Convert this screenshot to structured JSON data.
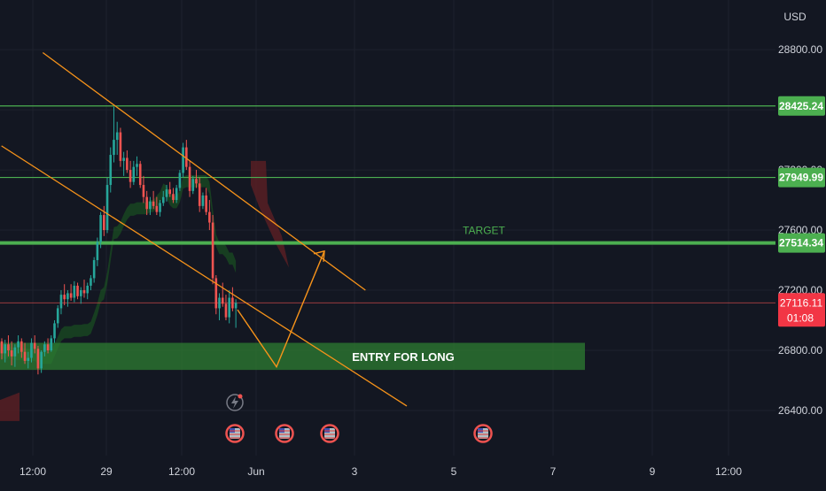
{
  "colors": {
    "background": "#131722",
    "grid": "#1e222d",
    "axis_text": "#d1d4dc",
    "candle_up": "#26a69a",
    "candle_down": "#ef5350",
    "channel": "#f7931a",
    "level_line": "#4caf50",
    "level_label_bg": "#4caf50",
    "price_label_bg": "#f23645",
    "cloud_green": "#1b5e20",
    "cloud_red": "#5c1f24",
    "entry_zone": "#2e7d32"
  },
  "chart_data": {
    "type": "candlestick",
    "currency": "USD",
    "y_ticks": [
      "28800.00",
      "26800.00",
      "26400.00"
    ],
    "y_ticks_partially_hidden": [
      "27600.00",
      "27200.00",
      "27200.00"
    ],
    "x_ticks": [
      "12:00",
      "29",
      "12:00",
      "Jun",
      "3",
      "5",
      "7",
      "9",
      "12:00"
    ],
    "ylim": [
      26100,
      29130
    ],
    "horizontal_levels": [
      {
        "price": 28425.24,
        "label": "28425.24"
      },
      {
        "price": 27949.99,
        "label": "27949.99"
      },
      {
        "price": 27514.34,
        "label": "27514.34",
        "annotation": "TARGET"
      }
    ],
    "current_price": {
      "price": 27116.11,
      "label": "27116.11",
      "countdown": "01:08"
    },
    "entry_zone": {
      "low": 26670,
      "high": 26850,
      "label": "ENTRY FOR LONG"
    },
    "channel_upper": [
      [
        "May 28 14:00",
        28780
      ],
      [
        "May 31 20:00",
        27200
      ]
    ],
    "channel_lower": [
      [
        "May 28 04:00",
        28160
      ],
      [
        "Jun 1 06:00",
        26430
      ]
    ],
    "projection_path": [
      [
        27070,
        27160
      ],
      [
        26690,
        26690
      ],
      [
        27460,
        27460
      ]
    ],
    "event_icons": [
      "flag-us-icon",
      "flag-us-icon",
      "flag-us-icon",
      "flag-us-icon"
    ],
    "alert_icon": "lightning-icon",
    "candles": [
      [
        26860,
        26880,
        26740,
        26780
      ],
      [
        26780,
        26870,
        26720,
        26840
      ],
      [
        26840,
        26900,
        26760,
        26800
      ],
      [
        26800,
        26860,
        26700,
        26760
      ],
      [
        26760,
        26840,
        26690,
        26820
      ],
      [
        26820,
        26900,
        26780,
        26860
      ],
      [
        26860,
        26880,
        26750,
        26790
      ],
      [
        26790,
        26850,
        26710,
        26730
      ],
      [
        26730,
        26790,
        26680,
        26750
      ],
      [
        26750,
        26880,
        26720,
        26850
      ],
      [
        26850,
        26900,
        26780,
        26810
      ],
      [
        26810,
        26830,
        26640,
        26680
      ],
      [
        26680,
        26800,
        26650,
        26790
      ],
      [
        26790,
        26860,
        26760,
        26840
      ],
      [
        26840,
        26880,
        26780,
        26800
      ],
      [
        26800,
        26900,
        26790,
        26880
      ],
      [
        26880,
        27000,
        26850,
        26980
      ],
      [
        26980,
        27100,
        26950,
        27080
      ],
      [
        27080,
        27200,
        27040,
        27170
      ],
      [
        27170,
        27240,
        27100,
        27140
      ],
      [
        27140,
        27200,
        27090,
        27180
      ],
      [
        27180,
        27240,
        27130,
        27150
      ],
      [
        27150,
        27260,
        27120,
        27230
      ],
      [
        27230,
        27250,
        27140,
        27160
      ],
      [
        27160,
        27220,
        27110,
        27200
      ],
      [
        27200,
        27270,
        27150,
        27180
      ],
      [
        27180,
        27250,
        27140,
        27230
      ],
      [
        27230,
        27300,
        27200,
        27280
      ],
      [
        27280,
        27420,
        27250,
        27400
      ],
      [
        27400,
        27550,
        27360,
        27520
      ],
      [
        27520,
        27720,
        27480,
        27700
      ],
      [
        27700,
        27760,
        27560,
        27600
      ],
      [
        27600,
        27950,
        27580,
        27900
      ],
      [
        27900,
        28150,
        27850,
        28100
      ],
      [
        28100,
        28420,
        28050,
        28200
      ],
      [
        28200,
        28320,
        28100,
        28250
      ],
      [
        28250,
        28280,
        28020,
        28060
      ],
      [
        28060,
        28120,
        27960,
        28080
      ],
      [
        28080,
        28130,
        27980,
        28000
      ],
      [
        28000,
        28060,
        27880,
        27920
      ],
      [
        27920,
        28060,
        27900,
        28020
      ],
      [
        28020,
        28090,
        27960,
        28040
      ],
      [
        28040,
        28060,
        27880,
        27900
      ],
      [
        27900,
        27960,
        27780,
        27820
      ],
      [
        27820,
        27860,
        27700,
        27740
      ],
      [
        27740,
        27820,
        27700,
        27790
      ],
      [
        27790,
        27860,
        27740,
        27760
      ],
      [
        27760,
        27820,
        27700,
        27720
      ],
      [
        27720,
        27800,
        27690,
        27780
      ],
      [
        27780,
        27860,
        27760,
        27820
      ],
      [
        27820,
        27900,
        27790,
        27870
      ],
      [
        27870,
        27920,
        27820,
        27840
      ],
      [
        27840,
        27880,
        27780,
        27800
      ],
      [
        27800,
        27900,
        27780,
        27880
      ],
      [
        27880,
        28000,
        27860,
        27980
      ],
      [
        27980,
        28180,
        27950,
        28150
      ],
      [
        28150,
        28200,
        28000,
        28020
      ],
      [
        28020,
        28060,
        27820,
        27860
      ],
      [
        27860,
        27960,
        27840,
        27940
      ],
      [
        27940,
        28000,
        27880,
        27910
      ],
      [
        27910,
        27950,
        27720,
        27760
      ],
      [
        27760,
        27850,
        27740,
        27830
      ],
      [
        27830,
        27880,
        27700,
        27720
      ],
      [
        27720,
        27800,
        27600,
        27650
      ],
      [
        27650,
        27700,
        27240,
        27280
      ],
      [
        27280,
        27300,
        27040,
        27080
      ],
      [
        27080,
        27180,
        27000,
        27150
      ],
      [
        27150,
        27250,
        27090,
        27110
      ],
      [
        27110,
        27170,
        27000,
        27020
      ],
      [
        27020,
        27200,
        26980,
        27150
      ],
      [
        27150,
        27220,
        27060,
        27080
      ],
      [
        27080,
        27140,
        26950,
        27116
      ]
    ]
  }
}
